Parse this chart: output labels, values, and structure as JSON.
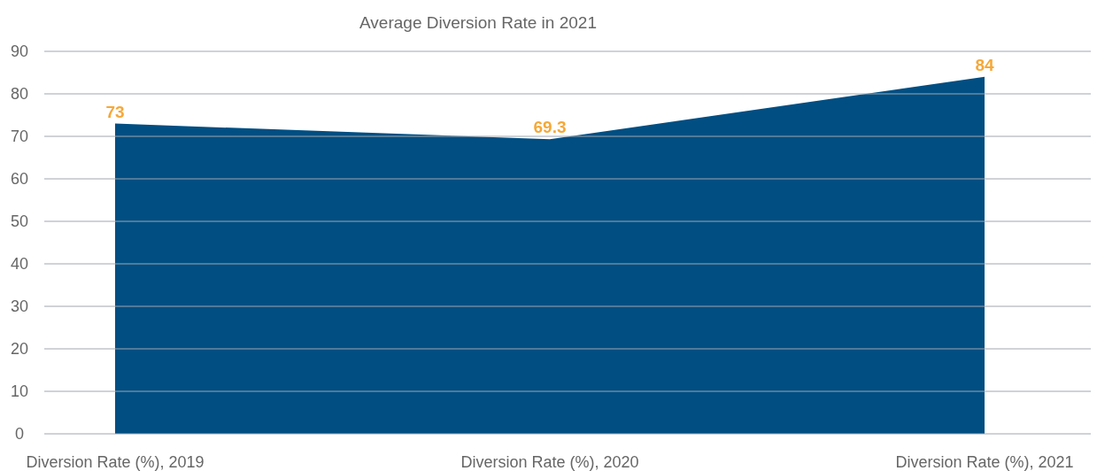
{
  "chart_data": {
    "type": "area",
    "title": "Average Diversion Rate in 2021",
    "categories": [
      "Diversion Rate (%), 2019",
      "Diversion Rate (%), 2020",
      "Diversion Rate (%), 2021"
    ],
    "values": [
      73,
      69.3,
      84
    ],
    "color": "#004e82",
    "data_labels": true,
    "ylim": [
      0,
      90
    ],
    "yticks": [
      0,
      10,
      20,
      30,
      40,
      50,
      60,
      70,
      80,
      90
    ],
    "grid": "y"
  }
}
